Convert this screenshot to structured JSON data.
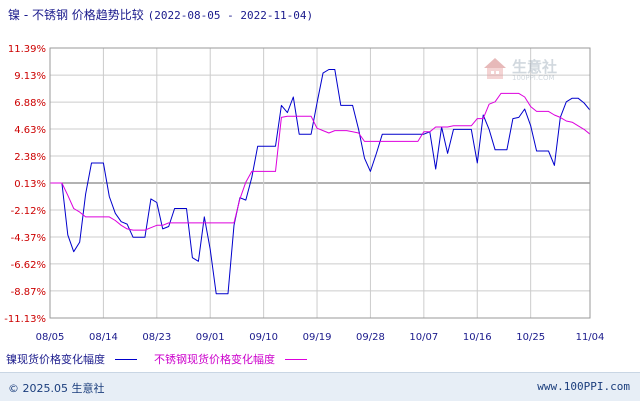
{
  "title_prefix": "镍 - 不锈钢 价格趋势比较",
  "title_range": "(2022-08-05 - 2022-11-04)",
  "legend": {
    "series1_label": "镍现货价格变化幅度",
    "series2_label": "不锈钢现货价格变化幅度"
  },
  "footer": {
    "copyright": "© 2025.05 生意社",
    "site": "www.100PPI.com"
  },
  "watermark": {
    "text": "生意社",
    "sub": "100PPI.COM"
  },
  "colors": {
    "series1": "#0000cc",
    "series2": "#dd00dd",
    "grid": "#cccccc",
    "axis_text": "#cc0000",
    "zero_line": "#666666"
  },
  "chart_data": {
    "type": "line",
    "y_tick_labels": [
      "11.39%",
      "9.13%",
      "6.88%",
      "4.63%",
      "2.38%",
      "0.13%",
      "-2.12%",
      "-4.37%",
      "-6.62%",
      "-8.87%",
      "-11.13%"
    ],
    "y_ticks": [
      11.39,
      9.13,
      6.88,
      4.63,
      2.38,
      0.13,
      -2.12,
      -4.37,
      -6.62,
      -8.87,
      -11.13
    ],
    "ylim": [
      -11.13,
      11.39
    ],
    "x_tick_labels": [
      "08/05",
      "08/14",
      "08/23",
      "09/01",
      "09/10",
      "09/19",
      "09/28",
      "10/07",
      "10/16",
      "10/25",
      "11/04"
    ],
    "x_tick_days": [
      0,
      9,
      18,
      27,
      36,
      45,
      54,
      63,
      72,
      81,
      91
    ],
    "xlim": [
      0,
      91
    ],
    "grid": true,
    "series": [
      {
        "name": "镍现货价格变化幅度",
        "color": "#0000cc",
        "points": [
          [
            0,
            0.13
          ],
          [
            2,
            0.13
          ],
          [
            3,
            -4.2
          ],
          [
            4,
            -5.6
          ],
          [
            5,
            -4.8
          ],
          [
            6,
            -0.8
          ],
          [
            7,
            1.8
          ],
          [
            8,
            1.8
          ],
          [
            9,
            1.8
          ],
          [
            10,
            -1.0
          ],
          [
            11,
            -2.4
          ],
          [
            12,
            -3.1
          ],
          [
            13,
            -3.3
          ],
          [
            14,
            -4.4
          ],
          [
            15,
            -4.4
          ],
          [
            16,
            -4.4
          ],
          [
            17,
            -1.2
          ],
          [
            18,
            -1.5
          ],
          [
            19,
            -3.7
          ],
          [
            20,
            -3.5
          ],
          [
            21,
            -2.0
          ],
          [
            22,
            -2.0
          ],
          [
            23,
            -2.0
          ],
          [
            24,
            -6.1
          ],
          [
            25,
            -6.4
          ],
          [
            26,
            -2.7
          ],
          [
            27,
            -5.4
          ],
          [
            28,
            -9.1
          ],
          [
            29,
            -9.1
          ],
          [
            30,
            -9.1
          ],
          [
            31,
            -3.4
          ],
          [
            32,
            -1.1
          ],
          [
            33,
            -1.3
          ],
          [
            34,
            0.6
          ],
          [
            35,
            3.2
          ],
          [
            36,
            3.2
          ],
          [
            37,
            3.2
          ],
          [
            38,
            3.2
          ],
          [
            39,
            6.6
          ],
          [
            40,
            6.0
          ],
          [
            41,
            7.3
          ],
          [
            42,
            4.2
          ],
          [
            43,
            4.2
          ],
          [
            44,
            4.2
          ],
          [
            45,
            6.8
          ],
          [
            46,
            9.3
          ],
          [
            47,
            9.6
          ],
          [
            48,
            9.6
          ],
          [
            49,
            6.6
          ],
          [
            50,
            6.6
          ],
          [
            51,
            6.6
          ],
          [
            52,
            4.6
          ],
          [
            53,
            2.2
          ],
          [
            54,
            1.1
          ],
          [
            55,
            2.6
          ],
          [
            56,
            4.2
          ],
          [
            57,
            4.2
          ],
          [
            58,
            4.2
          ],
          [
            59,
            4.2
          ],
          [
            60,
            4.2
          ],
          [
            61,
            4.2
          ],
          [
            62,
            4.2
          ],
          [
            63,
            4.2
          ],
          [
            64,
            4.4
          ],
          [
            65,
            1.3
          ],
          [
            66,
            4.8
          ],
          [
            67,
            2.6
          ],
          [
            68,
            4.6
          ],
          [
            69,
            4.6
          ],
          [
            70,
            4.6
          ],
          [
            71,
            4.6
          ],
          [
            72,
            1.8
          ],
          [
            73,
            5.8
          ],
          [
            74,
            4.6
          ],
          [
            75,
            2.9
          ],
          [
            76,
            2.9
          ],
          [
            77,
            2.9
          ],
          [
            78,
            5.5
          ],
          [
            79,
            5.6
          ],
          [
            80,
            6.3
          ],
          [
            81,
            4.9
          ],
          [
            82,
            2.8
          ],
          [
            83,
            2.8
          ],
          [
            84,
            2.8
          ],
          [
            85,
            1.6
          ],
          [
            86,
            5.6
          ],
          [
            87,
            6.9
          ],
          [
            88,
            7.2
          ],
          [
            89,
            7.2
          ],
          [
            90,
            6.8
          ],
          [
            91,
            6.2
          ]
        ]
      },
      {
        "name": "不锈钢现货价格变化幅度",
        "color": "#dd00dd",
        "points": [
          [
            0,
            0.13
          ],
          [
            2,
            0.13
          ],
          [
            3,
            -0.9
          ],
          [
            4,
            -2.0
          ],
          [
            5,
            -2.3
          ],
          [
            6,
            -2.7
          ],
          [
            7,
            -2.7
          ],
          [
            8,
            -2.7
          ],
          [
            9,
            -2.7
          ],
          [
            10,
            -2.7
          ],
          [
            11,
            -3.0
          ],
          [
            12,
            -3.4
          ],
          [
            13,
            -3.7
          ],
          [
            14,
            -3.8
          ],
          [
            15,
            -3.8
          ],
          [
            16,
            -3.8
          ],
          [
            17,
            -3.6
          ],
          [
            18,
            -3.4
          ],
          [
            19,
            -3.4
          ],
          [
            20,
            -3.2
          ],
          [
            21,
            -3.2
          ],
          [
            22,
            -3.2
          ],
          [
            23,
            -3.2
          ],
          [
            24,
            -3.2
          ],
          [
            25,
            -3.2
          ],
          [
            26,
            -3.2
          ],
          [
            27,
            -3.2
          ],
          [
            28,
            -3.2
          ],
          [
            29,
            -3.2
          ],
          [
            30,
            -3.2
          ],
          [
            31,
            -3.2
          ],
          [
            32,
            -1.2
          ],
          [
            33,
            0.2
          ],
          [
            34,
            1.1
          ],
          [
            35,
            1.1
          ],
          [
            36,
            1.1
          ],
          [
            37,
            1.1
          ],
          [
            38,
            1.1
          ],
          [
            39,
            5.6
          ],
          [
            40,
            5.7
          ],
          [
            41,
            5.7
          ],
          [
            42,
            5.7
          ],
          [
            43,
            5.7
          ],
          [
            44,
            5.7
          ],
          [
            45,
            4.7
          ],
          [
            46,
            4.5
          ],
          [
            47,
            4.3
          ],
          [
            48,
            4.5
          ],
          [
            49,
            4.5
          ],
          [
            50,
            4.5
          ],
          [
            51,
            4.4
          ],
          [
            52,
            4.3
          ],
          [
            53,
            3.6
          ],
          [
            54,
            3.6
          ],
          [
            55,
            3.6
          ],
          [
            56,
            3.6
          ],
          [
            57,
            3.6
          ],
          [
            58,
            3.6
          ],
          [
            59,
            3.6
          ],
          [
            60,
            3.6
          ],
          [
            61,
            3.6
          ],
          [
            62,
            3.6
          ],
          [
            63,
            4.4
          ],
          [
            64,
            4.4
          ],
          [
            65,
            4.8
          ],
          [
            66,
            4.8
          ],
          [
            67,
            4.8
          ],
          [
            68,
            4.9
          ],
          [
            69,
            4.9
          ],
          [
            70,
            4.9
          ],
          [
            71,
            4.9
          ],
          [
            72,
            5.5
          ],
          [
            73,
            5.5
          ],
          [
            74,
            6.7
          ],
          [
            75,
            6.9
          ],
          [
            76,
            7.6
          ],
          [
            77,
            7.6
          ],
          [
            78,
            7.6
          ],
          [
            79,
            7.6
          ],
          [
            80,
            7.3
          ],
          [
            81,
            6.5
          ],
          [
            82,
            6.1
          ],
          [
            83,
            6.1
          ],
          [
            84,
            6.1
          ],
          [
            85,
            5.8
          ],
          [
            86,
            5.6
          ],
          [
            87,
            5.3
          ],
          [
            88,
            5.2
          ],
          [
            89,
            4.9
          ],
          [
            90,
            4.6
          ],
          [
            91,
            4.2
          ]
        ]
      }
    ]
  }
}
